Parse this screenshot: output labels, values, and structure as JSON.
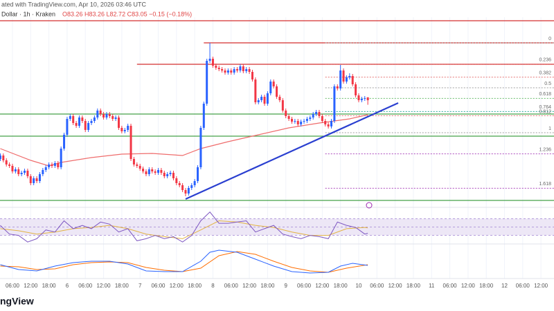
{
  "header": {
    "title": "ated with TradingView.com, Apr 10, 2026 03:46 UTC",
    "symbol": "Dollar · 1h · Kraken",
    "ohlc": "O83.26 H83.26 L82.72 C83.05 −0.15 (−0.18%)"
  },
  "footer": {
    "brand": "ngView"
  },
  "chart_data": {
    "type": "candlestick",
    "up_color": "#2962ff",
    "down_color": "#f23645",
    "xlim": [
      -0.1,
      182.3
    ],
    "ylim": [
      75.3,
      89.05
    ],
    "grid": true,
    "xticks": [
      {
        "value": 4,
        "label": "06:00"
      },
      {
        "value": 10,
        "label": "12:00"
      },
      {
        "value": 16,
        "label": "18:00"
      },
      {
        "value": 22,
        "label": "6"
      },
      {
        "value": 28,
        "label": "06:00"
      },
      {
        "value": 34,
        "label": "12:00"
      },
      {
        "value": 40,
        "label": "18:00"
      },
      {
        "value": 46,
        "label": "7"
      },
      {
        "value": 52,
        "label": "06:00"
      },
      {
        "value": 58,
        "label": "12:00"
      },
      {
        "value": 64,
        "label": "18:00"
      },
      {
        "value": 70,
        "label": "8"
      },
      {
        "value": 76,
        "label": "06:00"
      },
      {
        "value": 82,
        "label": "12:00"
      },
      {
        "value": 88,
        "label": "18:00"
      },
      {
        "value": 94,
        "label": "9"
      },
      {
        "value": 100,
        "label": "06:00"
      },
      {
        "value": 106,
        "label": "12:00"
      },
      {
        "value": 112,
        "label": "18:00"
      },
      {
        "value": 118,
        "label": "10"
      },
      {
        "value": 124,
        "label": "06:00"
      },
      {
        "value": 130,
        "label": "12:00"
      },
      {
        "value": 136,
        "label": "18:00"
      },
      {
        "value": 142,
        "label": "11"
      },
      {
        "value": 148,
        "label": "06:00"
      },
      {
        "value": 154,
        "label": "12:00"
      },
      {
        "value": 160,
        "label": "18:00"
      },
      {
        "value": 166,
        "label": "12"
      },
      {
        "value": 172,
        "label": "06:00"
      },
      {
        "value": 178,
        "label": "12:00"
      }
    ],
    "open": [
      78.8,
      79.05,
      78.7,
      78.4,
      78.3,
      77.9,
      78.05,
      77.7,
      77.8,
      77.95,
      77.55,
      77.05,
      77.4,
      77.2,
      77.7,
      78.0,
      78.2,
      78.4,
      78.3,
      78.5,
      78.2,
      79.55,
      80.55,
      81.7,
      81.9,
      81.4,
      81.2,
      81.8,
      81.55,
      80.9,
      81.4,
      81.55,
      81.8,
      82.3,
      82.05,
      81.8,
      82.05,
      81.9,
      81.7,
      81.8,
      81.05,
      80.8,
      80.9,
      81.2,
      78.8,
      78.4,
      78.3,
      78.1,
      77.9,
      77.7,
      78.05,
      77.9,
      77.8,
      78.0,
      77.8,
      77.55,
      77.7,
      77.8,
      77.4,
      77.05,
      76.9,
      76.55,
      76.3,
      76.7,
      76.9,
      77.2,
      78.2,
      81.05,
      82.8,
      85.9,
      86.05,
      85.55,
      85.4,
      85.3,
      85.2,
      85.05,
      85.2,
      85.05,
      85.3,
      85.2,
      85.5,
      85.15,
      85.3,
      85.1,
      84.55,
      82.9,
      83.05,
      83.3,
      82.8,
      83.55,
      84.4,
      84.05,
      83.3,
      83.05,
      82.3,
      81.9,
      81.7,
      81.5,
      81.55,
      81.3,
      81.5,
      81.55,
      81.7,
      81.8,
      82.05,
      82.2,
      81.9,
      81.55,
      81.3,
      81.15,
      81.55,
      84.05,
      83.9,
      85.2,
      84.4,
      84.7,
      84.8,
      84.2,
      83.4,
      83.05,
      83.15,
      83.26
    ],
    "high": [
      79.2,
      79.2,
      78.85,
      78.55,
      78.45,
      78.2,
      78.2,
      77.95,
      78.1,
      78.1,
      77.7,
      77.55,
      77.55,
      77.85,
      78.15,
      78.35,
      78.55,
      78.55,
      78.65,
      78.65,
      79.7,
      80.7,
      81.85,
      82.05,
      82.05,
      81.55,
      81.95,
      81.95,
      81.7,
      81.55,
      81.7,
      81.95,
      82.45,
      82.45,
      82.2,
      82.2,
      82.2,
      82.05,
      81.95,
      81.95,
      81.2,
      81.05,
      81.35,
      81.35,
      78.95,
      78.55,
      78.45,
      78.25,
      78.05,
      78.2,
      78.2,
      78.05,
      78.15,
      78.15,
      77.95,
      77.85,
      77.95,
      77.95,
      77.55,
      77.2,
      77.05,
      76.7,
      76.85,
      77.05,
      77.35,
      78.35,
      81.2,
      82.95,
      86.05,
      87.2,
      86.2,
      85.7,
      85.55,
      85.45,
      85.35,
      85.35,
      85.35,
      85.45,
      85.45,
      85.65,
      85.65,
      85.45,
      85.45,
      85.25,
      84.7,
      83.2,
      83.45,
      83.45,
      83.7,
      84.55,
      84.55,
      84.2,
      83.45,
      83.2,
      82.45,
      82.05,
      81.85,
      81.7,
      81.7,
      81.65,
      81.7,
      81.85,
      81.95,
      82.2,
      82.35,
      82.35,
      82.05,
      81.7,
      81.45,
      81.7,
      84.2,
      84.2,
      85.6,
      85.35,
      84.85,
      85.0,
      84.95,
      84.35,
      83.55,
      83.3,
      83.35,
      83.26
    ],
    "low": [
      78.65,
      78.55,
      78.25,
      78.15,
      77.75,
      77.75,
      77.55,
      77.55,
      77.65,
      77.4,
      76.9,
      76.9,
      77.05,
      77.05,
      77.55,
      77.85,
      78.05,
      78.15,
      78.15,
      78.05,
      78.05,
      79.4,
      80.4,
      81.55,
      81.25,
      81.05,
      81.05,
      81.4,
      80.75,
      80.75,
      81.25,
      81.4,
      81.65,
      81.9,
      81.65,
      81.65,
      81.75,
      81.55,
      81.55,
      80.9,
      80.65,
      80.65,
      80.75,
      78.65,
      78.25,
      78.15,
      77.95,
      77.75,
      77.55,
      77.55,
      77.75,
      77.65,
      77.65,
      77.65,
      77.4,
      77.4,
      77.55,
      77.25,
      76.9,
      76.75,
      76.4,
      76.1,
      76.15,
      76.55,
      76.75,
      77.05,
      78.05,
      80.9,
      82.65,
      85.75,
      85.4,
      85.25,
      85.15,
      85.05,
      84.9,
      84.9,
      84.9,
      84.9,
      85.05,
      85.05,
      85.0,
      85.0,
      84.95,
      84.4,
      82.75,
      82.75,
      82.9,
      82.65,
      82.65,
      83.4,
      83.9,
      83.15,
      82.9,
      82.15,
      81.75,
      81.55,
      81.35,
      81.35,
      81.15,
      81.15,
      81.35,
      81.4,
      81.55,
      81.65,
      81.9,
      81.75,
      81.4,
      81.15,
      81.0,
      81.0,
      81.4,
      83.75,
      83.75,
      84.25,
      84.25,
      84.55,
      84.05,
      83.25,
      82.9,
      82.9,
      83.0,
      82.72
    ],
    "close": [
      79.05,
      78.7,
      78.4,
      78.3,
      77.9,
      78.05,
      77.7,
      77.8,
      77.95,
      77.55,
      77.05,
      77.4,
      77.2,
      77.7,
      78.0,
      78.2,
      78.4,
      78.3,
      78.5,
      78.2,
      79.55,
      80.55,
      81.7,
      81.9,
      81.4,
      81.2,
      81.8,
      81.55,
      80.9,
      81.4,
      81.55,
      81.8,
      82.3,
      82.05,
      81.8,
      82.05,
      81.9,
      81.7,
      81.8,
      81.05,
      80.8,
      80.9,
      81.2,
      78.8,
      78.4,
      78.3,
      78.1,
      77.9,
      77.7,
      78.05,
      77.9,
      77.8,
      78.0,
      77.8,
      77.55,
      77.7,
      77.8,
      77.4,
      77.05,
      76.9,
      76.55,
      76.3,
      76.7,
      76.9,
      77.2,
      78.2,
      81.05,
      82.8,
      85.9,
      86.05,
      85.55,
      85.4,
      85.3,
      85.2,
      85.05,
      85.2,
      85.05,
      85.3,
      85.2,
      85.5,
      85.15,
      85.3,
      85.1,
      84.55,
      82.9,
      83.05,
      83.3,
      82.8,
      83.55,
      84.4,
      84.05,
      83.3,
      83.05,
      82.3,
      81.9,
      81.7,
      81.5,
      81.55,
      81.3,
      81.5,
      81.55,
      81.7,
      81.8,
      82.05,
      82.2,
      81.9,
      81.55,
      81.3,
      81.15,
      81.55,
      84.05,
      83.9,
      85.2,
      84.4,
      84.7,
      84.8,
      84.2,
      83.4,
      83.05,
      83.15,
      83.2,
      83.05
    ],
    "moving_average": {
      "color": "#ef6c6c",
      "x": [
        0,
        10,
        16,
        20,
        30,
        40,
        50,
        60,
        66,
        75,
        85,
        95,
        105,
        115,
        121
      ],
      "values": [
        79.55,
        78.7,
        78.3,
        78.55,
        78.9,
        79.15,
        79.2,
        79.05,
        79.55,
        80.05,
        80.55,
        81.05,
        81.4,
        81.7,
        82.0
      ]
    },
    "levels": [
      {
        "value": 88.8,
        "from": -0.1,
        "color": "#d32f2f"
      },
      {
        "value": 87.2,
        "from": 67,
        "color": "#d32f2f"
      },
      {
        "value": 85.65,
        "from": 45,
        "color": "#d32f2f"
      },
      {
        "value": 82.05,
        "from": -0.1,
        "color": "#43a047"
      },
      {
        "value": 80.45,
        "from": -0.1,
        "color": "#43a047"
      },
      {
        "value": 75.8,
        "from": -0.1,
        "color": "#43a047"
      }
    ],
    "trendline": {
      "color": "#2a3fd0",
      "x": [
        61,
        131
      ],
      "values": [
        75.9,
        82.85
      ]
    },
    "fib": {
      "range": [
        87.2,
        80.7
      ],
      "from": 107,
      "levels": [
        {
          "value": 0,
          "color": "#9e9e9e"
        },
        {
          "value": 0.236,
          "color": "#e57373"
        },
        {
          "value": 0.382,
          "color": "#e57373"
        },
        {
          "value": 0.5,
          "color": "#9e9e9e"
        },
        {
          "value": 0.618,
          "color": "#66bb6a"
        },
        {
          "value": 0.764,
          "color": "#26a69a"
        },
        {
          "value": 0.812,
          "color": "#e57373"
        },
        {
          "value": 1,
          "color": "#9e9e9e"
        },
        {
          "value": 1.236,
          "color": "#ab47bc"
        },
        {
          "value": 1.618,
          "color": "#ab47bc"
        }
      ]
    },
    "rsi": {
      "color": "#7e57c2",
      "band_color": "#ede7f6",
      "ylim": [
        11,
        94
      ],
      "levels": [
        30,
        50,
        70
      ],
      "x": [
        0,
        3,
        6,
        9,
        12,
        15,
        18,
        21,
        24,
        27,
        30,
        33,
        36,
        39,
        42,
        45,
        48,
        51,
        54,
        57,
        60,
        63,
        66,
        69,
        72,
        75,
        78,
        81,
        84,
        87,
        90,
        93,
        96,
        99,
        102,
        105,
        108,
        111,
        114,
        117,
        120,
        121
      ],
      "values": [
        54,
        33,
        30,
        14,
        22,
        43,
        38,
        65,
        46,
        54,
        46,
        62,
        57,
        38,
        46,
        17,
        22,
        30,
        22,
        27,
        14,
        30,
        65,
        86,
        59,
        59,
        62,
        65,
        38,
        46,
        54,
        33,
        27,
        22,
        30,
        27,
        22,
        62,
        54,
        49,
        33,
        35
      ],
      "ma": {
        "color": "#e3b341",
        "x": [
          0,
          6,
          12,
          18,
          24,
          30,
          36,
          42,
          48,
          54,
          60,
          66,
          72,
          78,
          84,
          90,
          96,
          102,
          108,
          114,
          120,
          121
        ],
        "values": [
          46,
          41,
          33,
          38,
          46,
          49,
          54,
          46,
          33,
          27,
          22,
          43,
          65,
          62,
          54,
          49,
          38,
          30,
          30,
          46,
          49,
          48
        ]
      }
    },
    "macd": {
      "ylim": [
        -10,
        35
      ],
      "macd": {
        "color": "#2962ff",
        "x": [
          0,
          6,
          12,
          18,
          24,
          30,
          36,
          42,
          48,
          54,
          60,
          66,
          69,
          72,
          78,
          84,
          90,
          96,
          102,
          108,
          112,
          116,
          121
        ],
        "values": [
          7,
          0,
          -2,
          5,
          10,
          12,
          12,
          8,
          -2,
          -3,
          -3,
          12,
          25,
          28,
          25,
          15,
          5,
          -3,
          -5,
          -4,
          5,
          9,
          6
        ]
      },
      "signal": {
        "color": "#ff6d00",
        "x": [
          0,
          6,
          12,
          18,
          24,
          30,
          36,
          42,
          48,
          54,
          60,
          66,
          72,
          78,
          84,
          90,
          96,
          102,
          108,
          114,
          121
        ],
        "values": [
          5,
          4,
          0,
          1,
          7,
          10,
          11,
          10,
          3,
          -1,
          -3,
          2,
          20,
          26,
          22,
          12,
          3,
          -2,
          -4,
          2,
          7
        ]
      }
    }
  }
}
